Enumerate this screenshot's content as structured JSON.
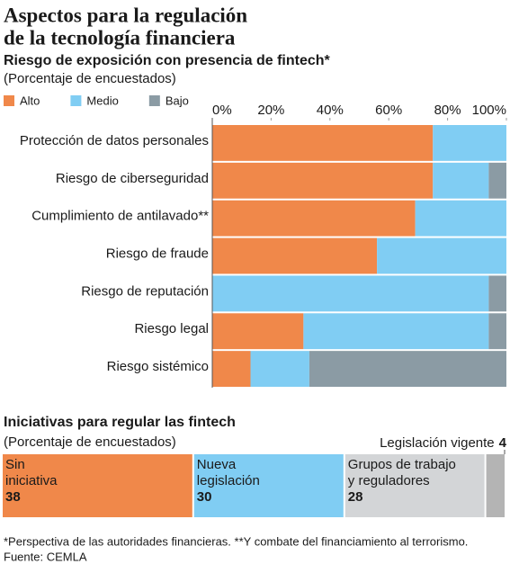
{
  "title": [
    "Aspectos para la regulación",
    "de la tecnología financiera"
  ],
  "chart_data": [
    {
      "type": "hbar",
      "title": "Riesgo de exposición con presencia de fintech*",
      "subtitle": "(Porcentaje de encuestados)",
      "categories": [
        "Protección de datos personales",
        "Riesgo de ciberseguridad",
        "Cumplimiento de antilavado**",
        "Riesgo de fraude",
        "Riesgo de reputación",
        "Riesgo legal",
        "Riesgo sistémico"
      ],
      "series": [
        {
          "name": "Alto",
          "color": "#f0884a",
          "values": [
            75,
            75,
            69,
            56,
            0,
            31,
            13
          ]
        },
        {
          "name": "Medio",
          "color": "#80cdf3",
          "values": [
            25,
            19,
            31,
            44,
            94,
            63,
            20
          ]
        },
        {
          "name": "Bajo",
          "color": "#8b9ba4",
          "values": [
            0,
            6,
            0,
            0,
            6,
            6,
            67
          ]
        }
      ],
      "xlim": [
        0,
        100
      ],
      "xticks": [
        {
          "value": 0,
          "label": "0%"
        },
        {
          "value": 20,
          "label": "20%"
        },
        {
          "value": 40,
          "label": "40%"
        },
        {
          "value": 60,
          "label": "60%"
        },
        {
          "value": 80,
          "label": "80%"
        },
        {
          "value": 100,
          "label": "100%"
        }
      ]
    },
    {
      "type": "sharebar",
      "title": "Iniciativas para regular las fintech",
      "subtitle": "(Porcentaje de encuestados)",
      "categories": [
        [
          "Sin",
          "iniciativa"
        ],
        [
          "Nueva",
          "legislación"
        ],
        [
          "Grupos de trabajo",
          "y reguladores"
        ],
        [
          "Legislación vigente"
        ]
      ],
      "values": [
        38,
        30,
        28,
        4
      ],
      "colors": [
        "#f0884a",
        "#80cdf3",
        "#d3d5d7",
        "#b4b4b4"
      ]
    }
  ],
  "notes": [
    "*Perspectiva de las autoridades financieras. **Y combate del financiamiento al terrorismo.",
    "Fuente: CEMLA"
  ]
}
